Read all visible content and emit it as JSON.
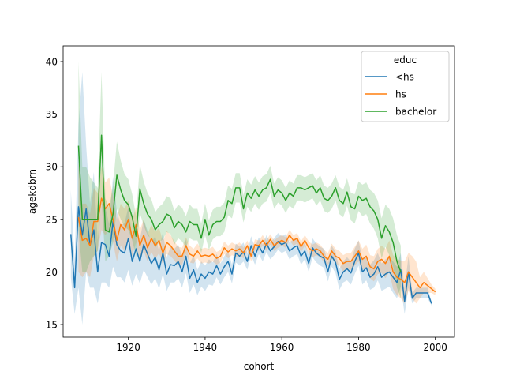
{
  "chart_data": {
    "type": "line",
    "title": "",
    "xlabel": "cohort",
    "ylabel": "agekdbrn",
    "xlim": [
      1903,
      2005
    ],
    "ylim": [
      13.8,
      41.5
    ],
    "xticks": [
      1920,
      1940,
      1960,
      1980,
      2000
    ],
    "yticks": [
      15,
      20,
      25,
      30,
      35,
      40
    ],
    "grid": false,
    "legend": {
      "title": "educ",
      "placement": "top-right"
    },
    "series": [
      {
        "name": "<hs",
        "color": "#1f77b4",
        "x": [
          1905,
          1906,
          1907,
          1908,
          1909,
          1910,
          1911,
          1912,
          1913,
          1914,
          1915,
          1916,
          1917,
          1918,
          1919,
          1920,
          1921,
          1922,
          1923,
          1924,
          1925,
          1926,
          1927,
          1928,
          1929,
          1930,
          1931,
          1932,
          1933,
          1934,
          1935,
          1936,
          1937,
          1938,
          1939,
          1940,
          1941,
          1942,
          1943,
          1944,
          1945,
          1946,
          1947,
          1948,
          1949,
          1950,
          1951,
          1952,
          1953,
          1954,
          1955,
          1956,
          1957,
          1958,
          1959,
          1960,
          1961,
          1962,
          1963,
          1964,
          1965,
          1966,
          1967,
          1968,
          1969,
          1970,
          1971,
          1972,
          1973,
          1974,
          1975,
          1976,
          1977,
          1978,
          1979,
          1980,
          1981,
          1982,
          1983,
          1984,
          1985,
          1986,
          1987,
          1988,
          1989,
          1990,
          1991,
          1992,
          1993,
          1994,
          1995,
          1996,
          1997,
          1998,
          1999
        ],
        "y": [
          23.6,
          18.5,
          26.2,
          23.5,
          26.0,
          22.5,
          24.0,
          20.0,
          22.8,
          22.6,
          21.5,
          24.8,
          22.6,
          22.0,
          21.8,
          23.2,
          21.0,
          22.2,
          21.0,
          22.6,
          21.7,
          20.8,
          21.4,
          20.2,
          21.8,
          19.8,
          20.7,
          20.6,
          21.0,
          20.0,
          21.5,
          19.4,
          20.2,
          19.0,
          19.8,
          19.4,
          20.0,
          19.8,
          20.6,
          19.8,
          20.5,
          21.0,
          19.8,
          21.8,
          21.5,
          21.9,
          21.0,
          22.5,
          21.5,
          22.5,
          21.8,
          22.7,
          22.0,
          22.4,
          22.9,
          22.6,
          22.8,
          22.0,
          22.3,
          22.5,
          21.5,
          22.0,
          20.8,
          22.3,
          21.8,
          21.5,
          21.3,
          20.0,
          21.5,
          20.9,
          19.3,
          20.0,
          20.3,
          19.9,
          21.0,
          21.8,
          20.0,
          20.4,
          19.5,
          19.8,
          20.5,
          19.5,
          19.8,
          20.0,
          19.5,
          19.0,
          20.2,
          17.2,
          20.0,
          17.5,
          18.0,
          18.0,
          18.0,
          18.0,
          17.0
        ],
        "ci_lower": [
          19.5,
          16.0,
          18.5,
          15.0,
          20.0,
          18.5,
          18.5,
          17.0,
          19.0,
          19.0,
          18.5,
          20.5,
          19.5,
          19.5,
          19.0,
          20.2,
          18.7,
          19.8,
          18.9,
          20.2,
          19.5,
          18.8,
          19.4,
          18.4,
          19.8,
          18.2,
          19.0,
          19.0,
          19.4,
          18.5,
          19.9,
          18.0,
          18.8,
          17.8,
          18.6,
          18.2,
          18.8,
          18.7,
          19.5,
          18.8,
          19.5,
          20.0,
          18.9,
          20.9,
          20.6,
          21.0,
          20.2,
          21.6,
          20.7,
          21.7,
          21.0,
          21.9,
          21.2,
          21.6,
          22.1,
          21.8,
          22.0,
          21.2,
          21.5,
          21.7,
          20.7,
          21.2,
          20.0,
          21.4,
          20.9,
          20.6,
          20.4,
          19.1,
          20.5,
          19.9,
          18.3,
          19.0,
          19.2,
          18.8,
          19.8,
          20.6,
          18.8,
          19.2,
          18.3,
          18.5,
          19.2,
          18.2,
          18.4,
          18.6,
          18.0,
          17.5,
          18.6,
          16.0,
          18.5,
          17.0,
          17.5,
          17.5,
          17.5,
          17.5,
          16.8
        ],
        "ci_upper": [
          27.8,
          21.0,
          34.0,
          39.0,
          32.0,
          26.5,
          29.5,
          23.0,
          26.6,
          26.2,
          24.5,
          29.1,
          25.7,
          24.5,
          24.6,
          26.2,
          23.3,
          24.6,
          23.1,
          25.0,
          23.9,
          22.8,
          23.4,
          22.0,
          23.8,
          21.4,
          22.4,
          22.2,
          22.6,
          21.5,
          23.1,
          20.8,
          21.6,
          20.2,
          21.0,
          20.6,
          21.2,
          20.9,
          21.7,
          20.8,
          21.5,
          22.0,
          20.7,
          22.7,
          22.4,
          22.8,
          21.8,
          23.4,
          22.3,
          23.3,
          22.6,
          23.5,
          22.8,
          23.2,
          23.7,
          23.4,
          23.6,
          22.8,
          23.1,
          23.3,
          22.3,
          22.8,
          21.6,
          23.2,
          22.7,
          22.4,
          22.2,
          20.9,
          22.5,
          21.9,
          20.3,
          21.0,
          21.4,
          21.0,
          22.2,
          23.0,
          21.2,
          21.6,
          20.7,
          21.1,
          21.8,
          20.8,
          21.2,
          21.4,
          21.0,
          20.5,
          21.8,
          18.4,
          21.5,
          18.0,
          18.5,
          18.5,
          18.5,
          18.5,
          17.2
        ]
      },
      {
        "name": "hs",
        "color": "#ff7f0e",
        "x": [
          1907,
          1908,
          1909,
          1910,
          1911,
          1912,
          1913,
          1914,
          1915,
          1916,
          1917,
          1918,
          1919,
          1920,
          1921,
          1922,
          1923,
          1924,
          1925,
          1926,
          1927,
          1928,
          1929,
          1930,
          1931,
          1932,
          1933,
          1934,
          1935,
          1936,
          1937,
          1938,
          1939,
          1940,
          1941,
          1942,
          1943,
          1944,
          1945,
          1946,
          1947,
          1948,
          1949,
          1950,
          1951,
          1952,
          1953,
          1954,
          1955,
          1956,
          1957,
          1958,
          1959,
          1960,
          1961,
          1962,
          1963,
          1964,
          1965,
          1966,
          1967,
          1968,
          1969,
          1970,
          1971,
          1972,
          1973,
          1974,
          1975,
          1976,
          1977,
          1978,
          1979,
          1980,
          1981,
          1982,
          1983,
          1984,
          1985,
          1986,
          1987,
          1988,
          1989,
          1990,
          1991,
          1992,
          1993,
          1994,
          1995,
          1996,
          1997,
          1998,
          1999,
          2000
        ],
        "y": [
          25.2,
          23.0,
          23.2,
          22.5,
          24.8,
          24.8,
          27.0,
          26.0,
          26.5,
          25.0,
          23.0,
          24.5,
          24.0,
          25.0,
          23.2,
          24.5,
          22.5,
          23.5,
          22.3,
          23.2,
          22.5,
          23.0,
          21.8,
          22.8,
          22.5,
          22.0,
          21.5,
          21.5,
          22.5,
          21.7,
          21.5,
          22.0,
          21.5,
          21.6,
          21.5,
          21.7,
          21.3,
          21.5,
          22.3,
          21.9,
          22.2,
          22.0,
          22.2,
          21.8,
          22.5,
          21.5,
          22.6,
          22.5,
          23.0,
          22.5,
          23.1,
          22.5,
          22.8,
          23.0,
          22.8,
          23.5,
          23.0,
          23.2,
          22.4,
          23.0,
          22.3,
          22.0,
          22.2,
          22.0,
          21.5,
          21.2,
          22.0,
          21.5,
          21.3,
          20.8,
          21.0,
          21.0,
          21.5,
          22.0,
          21.2,
          21.5,
          20.5,
          20.3,
          21.0,
          21.2,
          20.8,
          21.5,
          20.0,
          19.5,
          19.3,
          19.0,
          20.0,
          19.5,
          19.0,
          18.5,
          19.0,
          18.7,
          18.4,
          18.1
        ],
        "ci_lower": [
          20.0,
          19.5,
          20.0,
          19.5,
          21.5,
          22.0,
          24.0,
          23.5,
          24.0,
          22.8,
          21.0,
          22.5,
          22.0,
          23.2,
          21.5,
          22.8,
          21.0,
          22.0,
          21.0,
          21.9,
          21.2,
          21.8,
          20.7,
          21.7,
          21.5,
          21.1,
          20.6,
          20.7,
          21.7,
          20.9,
          20.8,
          21.3,
          20.8,
          20.9,
          20.8,
          21.0,
          20.7,
          20.9,
          21.7,
          21.3,
          21.6,
          21.4,
          21.6,
          21.3,
          22.0,
          21.0,
          22.1,
          22.0,
          22.5,
          22.0,
          22.6,
          22.0,
          22.3,
          22.5,
          22.3,
          23.0,
          22.5,
          22.7,
          21.9,
          22.5,
          21.7,
          21.4,
          21.6,
          21.4,
          20.9,
          20.6,
          21.3,
          20.8,
          20.6,
          20.0,
          20.2,
          20.2,
          20.6,
          21.0,
          20.2,
          20.4,
          19.4,
          19.1,
          19.8,
          19.9,
          19.4,
          20.0,
          18.4,
          17.8,
          17.5,
          17.0,
          18.2,
          17.5,
          17.0,
          17.5,
          18.0,
          18.0,
          18.0,
          17.8
        ],
        "ci_upper": [
          30.5,
          26.5,
          26.5,
          25.5,
          28.0,
          27.5,
          30.0,
          28.5,
          29.0,
          27.2,
          25.0,
          26.5,
          26.0,
          26.8,
          24.9,
          26.2,
          24.0,
          25.0,
          23.6,
          24.5,
          23.8,
          24.2,
          22.9,
          23.9,
          23.5,
          22.9,
          22.4,
          22.3,
          23.3,
          22.5,
          22.2,
          22.7,
          22.2,
          22.3,
          22.2,
          22.4,
          21.9,
          22.1,
          22.9,
          22.5,
          22.8,
          22.6,
          22.8,
          22.3,
          23.0,
          22.0,
          23.1,
          23.0,
          23.5,
          23.0,
          23.6,
          23.0,
          23.3,
          23.5,
          23.3,
          24.0,
          23.5,
          23.7,
          22.9,
          23.5,
          22.9,
          22.6,
          22.8,
          22.6,
          22.1,
          21.8,
          22.7,
          22.2,
          22.0,
          21.6,
          21.8,
          21.8,
          22.4,
          23.0,
          22.2,
          22.6,
          21.6,
          21.5,
          22.2,
          22.5,
          22.2,
          23.0,
          21.6,
          21.2,
          21.1,
          21.0,
          21.8,
          21.5,
          21.0,
          19.5,
          20.0,
          19.4,
          18.8,
          18.4
        ]
      },
      {
        "name": "bachelor",
        "color": "#2ca02c",
        "x": [
          1907,
          1908,
          1909,
          1910,
          1911,
          1912,
          1913,
          1914,
          1915,
          1916,
          1917,
          1918,
          1919,
          1920,
          1921,
          1922,
          1923,
          1924,
          1925,
          1926,
          1927,
          1928,
          1929,
          1930,
          1931,
          1932,
          1933,
          1934,
          1935,
          1936,
          1937,
          1938,
          1939,
          1940,
          1941,
          1942,
          1943,
          1944,
          1945,
          1946,
          1947,
          1948,
          1949,
          1950,
          1951,
          1952,
          1953,
          1954,
          1955,
          1956,
          1957,
          1958,
          1959,
          1960,
          1961,
          1962,
          1963,
          1964,
          1965,
          1966,
          1967,
          1968,
          1969,
          1970,
          1971,
          1972,
          1973,
          1974,
          1975,
          1976,
          1977,
          1978,
          1979,
          1980,
          1981,
          1982,
          1983,
          1984,
          1985,
          1986,
          1987,
          1988,
          1989,
          1990,
          1991
        ],
        "y": [
          32.0,
          25.0,
          25.0,
          25.0,
          25.0,
          25.0,
          33.0,
          24.0,
          23.8,
          25.5,
          29.2,
          27.8,
          26.8,
          26.4,
          25.2,
          23.4,
          27.9,
          26.5,
          25.5,
          25.0,
          24.0,
          24.5,
          24.8,
          25.5,
          25.3,
          24.2,
          24.8,
          24.5,
          23.8,
          24.8,
          24.5,
          24.5,
          23.2,
          25.0,
          23.5,
          24.5,
          24.8,
          24.8,
          25.2,
          26.8,
          26.5,
          28.0,
          28.0,
          26.0,
          27.5,
          27.0,
          27.8,
          27.2,
          27.8,
          28.0,
          28.8,
          27.2,
          27.8,
          27.5,
          26.8,
          27.5,
          27.2,
          28.0,
          28.0,
          27.8,
          28.0,
          28.2,
          27.5,
          28.0,
          27.0,
          26.8,
          27.2,
          28.0,
          26.8,
          26.5,
          27.6,
          26.2,
          26.0,
          27.2,
          26.8,
          27.0,
          26.2,
          25.8,
          25.0,
          23.2,
          24.4,
          23.8,
          22.8,
          21.0,
          20.0
        ],
        "ci_lower": [
          24.0,
          20.0,
          20.0,
          21.0,
          21.5,
          22.0,
          27.0,
          21.0,
          21.5,
          22.8,
          26.0,
          25.0,
          24.3,
          24.0,
          23.0,
          21.5,
          25.6,
          24.4,
          23.5,
          23.1,
          22.3,
          22.8,
          23.1,
          23.8,
          23.6,
          22.6,
          23.2,
          22.9,
          22.3,
          23.2,
          23.0,
          23.0,
          21.8,
          23.5,
          22.1,
          23.1,
          23.4,
          23.4,
          23.8,
          25.4,
          25.1,
          26.6,
          26.6,
          24.7,
          26.2,
          25.7,
          26.5,
          25.9,
          26.5,
          26.7,
          27.5,
          26.0,
          26.6,
          26.3,
          25.6,
          26.3,
          26.0,
          26.8,
          26.8,
          26.6,
          26.8,
          27.0,
          26.3,
          26.8,
          25.8,
          25.6,
          26.0,
          26.8,
          25.5,
          25.2,
          26.3,
          24.9,
          24.6,
          25.8,
          25.3,
          25.5,
          24.6,
          24.1,
          23.2,
          21.3,
          22.4,
          21.6,
          20.5,
          18.5,
          17.5
        ],
        "ci_upper": [
          40.0,
          30.0,
          30.0,
          29.0,
          28.5,
          28.0,
          39.0,
          27.0,
          26.1,
          28.2,
          32.4,
          30.6,
          29.3,
          28.8,
          27.4,
          25.3,
          30.2,
          28.6,
          27.5,
          26.9,
          25.7,
          26.2,
          26.5,
          27.2,
          27.0,
          25.8,
          26.4,
          26.1,
          25.3,
          26.4,
          26.0,
          26.0,
          24.6,
          26.5,
          24.9,
          25.9,
          26.2,
          26.2,
          26.6,
          28.2,
          27.9,
          29.4,
          29.4,
          27.3,
          28.8,
          28.3,
          29.1,
          28.5,
          29.1,
          29.3,
          30.1,
          28.4,
          29.0,
          28.7,
          28.0,
          28.7,
          28.4,
          29.2,
          29.2,
          29.0,
          29.2,
          29.4,
          28.7,
          29.2,
          28.2,
          28.0,
          28.4,
          29.2,
          28.1,
          27.8,
          28.9,
          27.5,
          27.4,
          28.6,
          28.3,
          28.5,
          27.8,
          27.5,
          26.8,
          25.1,
          26.4,
          26.0,
          25.1,
          23.5,
          22.5
        ]
      }
    ]
  }
}
